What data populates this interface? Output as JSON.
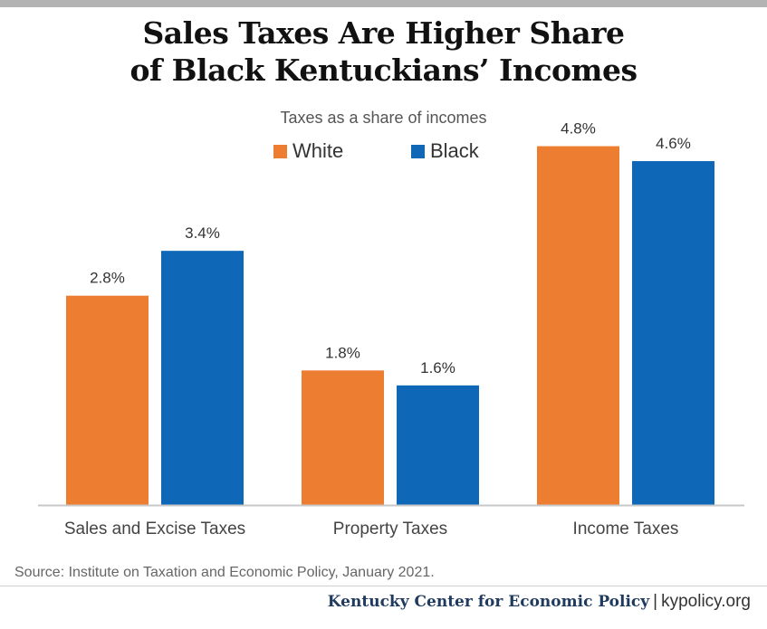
{
  "title_line1": "Sales Taxes Are Higher Share",
  "title_line2": "of Black Kentuckians’ Incomes",
  "subtitle": "Taxes as a share of incomes",
  "source": "Source: Institute on Taxation and Economic Policy, January 2021.",
  "footer": {
    "org": "Kentucky Center for Economic Policy",
    "separator": "|",
    "url": "kypolicy.org"
  },
  "chart_data": {
    "type": "bar",
    "title": "Sales Taxes Are Higher Share of Black Kentuckians’ Incomes",
    "subtitle": "Taxes as a share of incomes",
    "categories": [
      "Sales and Excise Taxes",
      "Property Taxes",
      "Income Taxes"
    ],
    "series": [
      {
        "name": "White",
        "color": "#ed7d31",
        "values": [
          2.8,
          1.8,
          4.8
        ],
        "labels": [
          "2.8%",
          "1.8%",
          "4.8%"
        ]
      },
      {
        "name": "Black",
        "color": "#0f67b8",
        "values": [
          3.4,
          1.6,
          4.6
        ],
        "labels": [
          "3.4%",
          "1.6%",
          "4.6%"
        ]
      }
    ],
    "ylim": [
      0,
      5
    ],
    "legend_position": "top-center",
    "grid": false,
    "data_labels": true
  }
}
